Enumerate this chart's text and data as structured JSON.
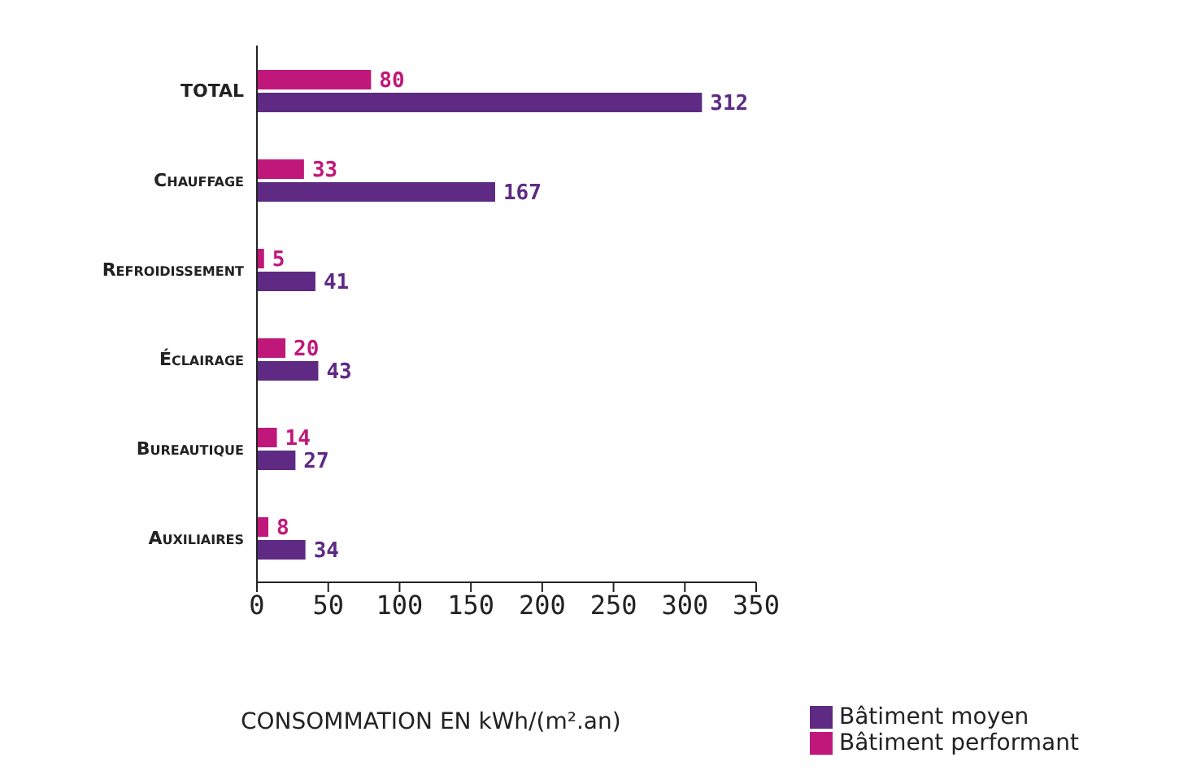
{
  "chart_data": {
    "type": "bar",
    "orientation": "horizontal",
    "xlabel": "CONSOMMATION EN kWh/(m².an)",
    "categories": [
      "TOTAL",
      "Chauffage",
      "Refroidissement",
      "Éclairage",
      "Bureautique",
      "Auxiliaires"
    ],
    "series": [
      {
        "name": "Bâtiment performant",
        "color": "#c0187a",
        "values": [
          80,
          33,
          5,
          20,
          14,
          8
        ]
      },
      {
        "name": "Bâtiment moyen",
        "color": "#5e2a84",
        "values": [
          312,
          167,
          41,
          43,
          27,
          34
        ]
      }
    ],
    "xlim": [
      0,
      350
    ],
    "xticks": [
      0,
      50,
      100,
      150,
      200,
      250,
      300,
      350
    ],
    "data_labels": true,
    "grid": false,
    "legend": "bottom right"
  }
}
